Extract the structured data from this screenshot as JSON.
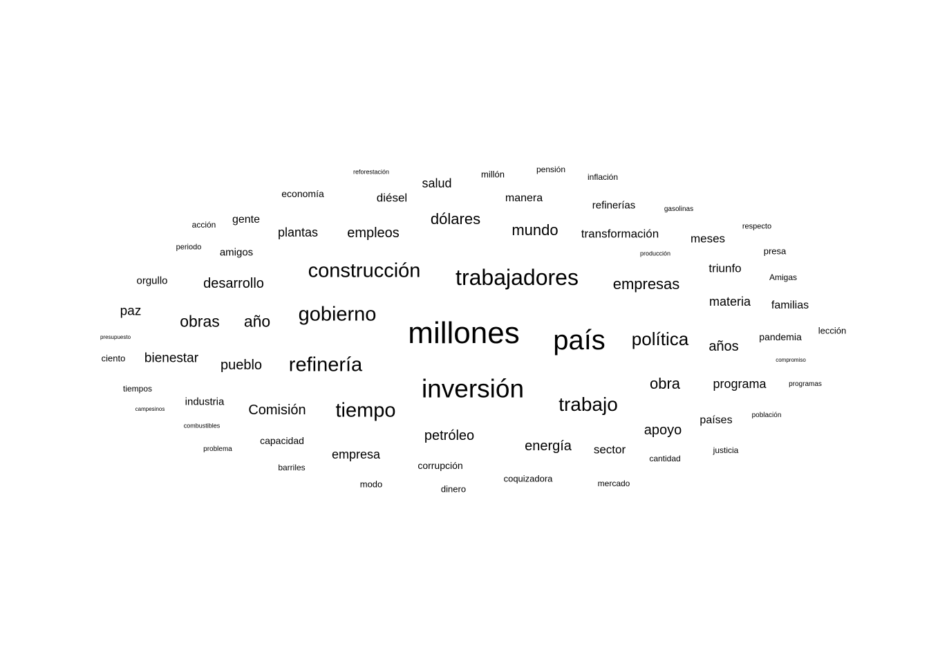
{
  "words": [
    {
      "text": "millones"
    },
    {
      "text": "país"
    },
    {
      "text": "inversión"
    },
    {
      "text": "trabajadores"
    },
    {
      "text": "construcción"
    },
    {
      "text": "gobierno"
    },
    {
      "text": "refinería"
    },
    {
      "text": "tiempo"
    },
    {
      "text": "trabajo"
    },
    {
      "text": "política"
    },
    {
      "text": "obras"
    },
    {
      "text": "año"
    },
    {
      "text": "empresas"
    },
    {
      "text": "dólares"
    },
    {
      "text": "mundo"
    },
    {
      "text": "obra"
    },
    {
      "text": "petróleo"
    },
    {
      "text": "empleos"
    },
    {
      "text": "desarrollo"
    },
    {
      "text": "pueblo"
    },
    {
      "text": "años"
    },
    {
      "text": "energía"
    },
    {
      "text": "apoyo"
    },
    {
      "text": "Comisión"
    },
    {
      "text": "bienestar"
    },
    {
      "text": "materia"
    },
    {
      "text": "programa"
    },
    {
      "text": "empresa"
    },
    {
      "text": "plantas"
    },
    {
      "text": "paz"
    },
    {
      "text": "salud"
    },
    {
      "text": "sector"
    },
    {
      "text": "diésel"
    },
    {
      "text": "meses"
    },
    {
      "text": "transformación"
    },
    {
      "text": "triunfo"
    },
    {
      "text": "manera"
    },
    {
      "text": "países"
    },
    {
      "text": "gente"
    },
    {
      "text": "familias"
    },
    {
      "text": "refinerías"
    },
    {
      "text": "industria"
    },
    {
      "text": "amigos"
    },
    {
      "text": "orgullo"
    },
    {
      "text": "pandemia"
    },
    {
      "text": "economía"
    },
    {
      "text": "capacidad"
    },
    {
      "text": "corrupción"
    },
    {
      "text": "coquizadora"
    },
    {
      "text": "millón"
    },
    {
      "text": "presa"
    },
    {
      "text": "ciento"
    },
    {
      "text": "lección"
    },
    {
      "text": "modo"
    },
    {
      "text": "dinero"
    },
    {
      "text": "acción"
    },
    {
      "text": "justicia"
    },
    {
      "text": "cantidad"
    },
    {
      "text": "inflación"
    },
    {
      "text": "pensión"
    },
    {
      "text": "barriles"
    },
    {
      "text": "tiempos"
    },
    {
      "text": "Amigas"
    },
    {
      "text": "mercado"
    },
    {
      "text": "periodo"
    },
    {
      "text": "respecto"
    },
    {
      "text": "programas"
    },
    {
      "text": "población"
    },
    {
      "text": "problema"
    },
    {
      "text": "gasolinas"
    },
    {
      "text": "combustibles"
    },
    {
      "text": "producción"
    },
    {
      "text": "reforestación"
    },
    {
      "text": "campesinos"
    },
    {
      "text": "compromiso"
    },
    {
      "text": "presupuesto"
    }
  ]
}
